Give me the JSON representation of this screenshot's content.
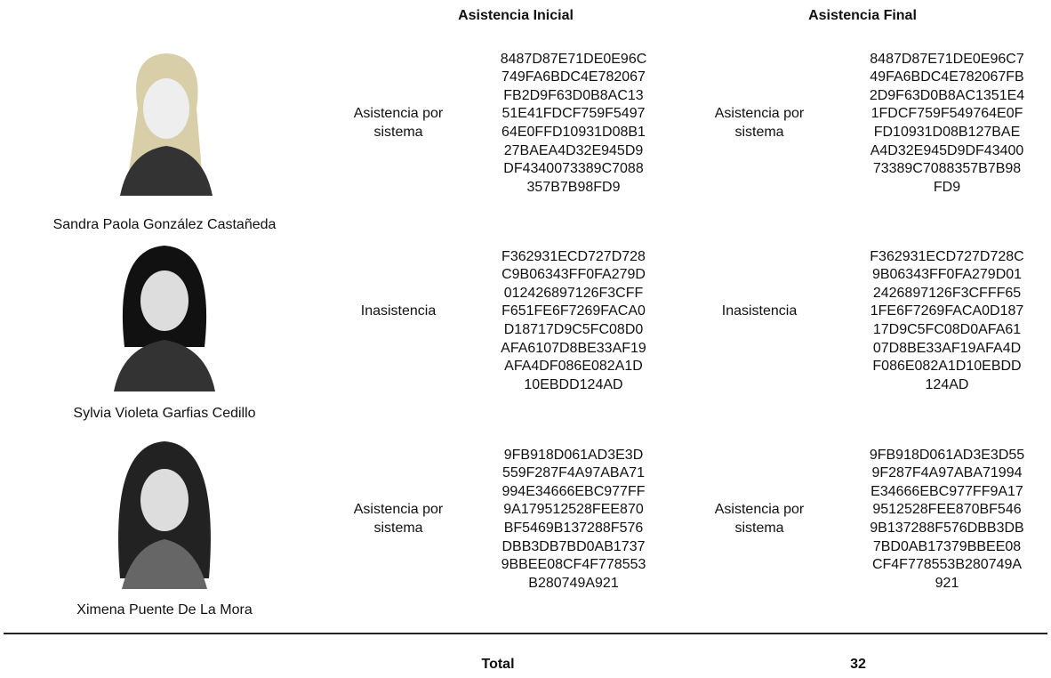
{
  "header": {
    "columns": [
      "Asistencia Inicial",
      "Asistencia Final"
    ]
  },
  "table": {
    "rows": [
      {
        "name": "Sandra Paola González Castañeda",
        "initial_status": "Asistencia por sistema",
        "initial_hash": [
          "8487D87E71DE0E96C",
          "749FA6BDC4E782067",
          "FB2D9F63D0B8AC13",
          "51E41FDCF759F5497",
          "64E0FFD10931D08B1",
          "27BAEA4D32E945D9",
          "DF4340073389C7088",
          "357B7B98FD9"
        ],
        "final_status": "Asistencia por sistema",
        "final_hash": [
          "8487D87E71DE0E96C7",
          "49FA6BDC4E782067FB",
          "2D9F63D0B8AC1351E4",
          "1FDCF759F549764E0F",
          "FD10931D08B127BAE",
          "A4D32E945D9DF43400",
          "73389C7088357B7B98",
          "FD9"
        ]
      },
      {
        "name": "Sylvia Violeta Garfias Cedillo",
        "initial_status": "Inasistencia",
        "initial_hash": [
          "F362931ECD727D728",
          "C9B06343FF0FA279D",
          "012426897126F3CFF",
          "F651FE6F7269FACA0",
          "D18717D9C5FC08D0",
          "AFA6107D8BE33AF19",
          "AFA4DF086E082A1D",
          "10EBDD124AD"
        ],
        "final_status": "Inasistencia",
        "final_hash": [
          "F362931ECD727D728C",
          "9B06343FF0FA279D01",
          "2426897126F3CFFF65",
          "1FE6F7269FACA0D187",
          "17D9C5FC08D0AFA61",
          "07D8BE33AF19AFA4D",
          "F086E082A1D10EBDD",
          "124AD"
        ]
      },
      {
        "name": "Ximena Puente De La Mora",
        "initial_status": "Asistencia por sistema",
        "initial_hash": [
          "9FB918D061AD3E3D",
          "559F287F4A97ABA71",
          "994E34666EBC977FF",
          "9A179512528FEE870",
          "BF5469B137288F576",
          "DBB3DB7BD0AB1737",
          "9BBEE08CF4F778553",
          "B280749A921"
        ],
        "final_status": "Asistencia por sistema",
        "final_hash": [
          "9FB918D061AD3E3D55",
          "9F287F4A97ABA71994",
          "E34666EBC977FF9A17",
          "9512528FEE870BF546",
          "9B137288F576DBB3DB",
          "7BD0AB17379BBEE08",
          "CF4F778553B280749A",
          "921"
        ]
      }
    ]
  },
  "footer": {
    "label": "Total",
    "value": 32
  }
}
